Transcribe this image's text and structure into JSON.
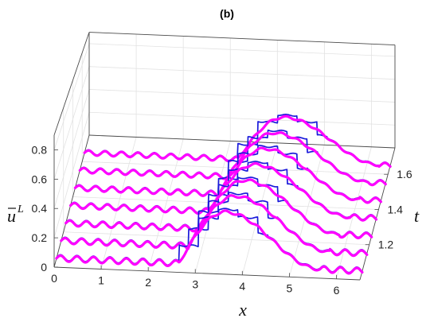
{
  "chart_data": {
    "type": "line",
    "view": "3d waterfall",
    "title": "(b)",
    "xlabel": "x",
    "ylabel": "t",
    "zlabel": "u",
    "zlabel_superscript": "L",
    "xlim": [
      0,
      6.5
    ],
    "ylim": [
      1.0,
      1.75
    ],
    "zlim": [
      0,
      0.9
    ],
    "x_ticks": [
      "0",
      "1",
      "2",
      "3",
      "4",
      "5",
      "6"
    ],
    "t_ticks": [
      "1.2",
      "1.4",
      "1.6"
    ],
    "z_ticks": [
      "0",
      "0.2",
      "0.4",
      "0.6",
      "0.8"
    ],
    "t_slices": [
      1.05,
      1.15,
      1.25,
      1.35,
      1.45,
      1.55,
      1.65
    ],
    "background_amplitude": 0.02,
    "background_wavelength": 0.35,
    "bump": {
      "x_start": 2.6,
      "x_peak": 3.6,
      "x_end": 5.6,
      "peak": 0.37
    },
    "step_count": 7,
    "series": [
      {
        "color": "#1a1adb",
        "width": 1.7,
        "style": "staircase"
      },
      {
        "color": "#ff00ff",
        "width": 3.2,
        "style": "smooth"
      }
    ],
    "grid": true
  }
}
